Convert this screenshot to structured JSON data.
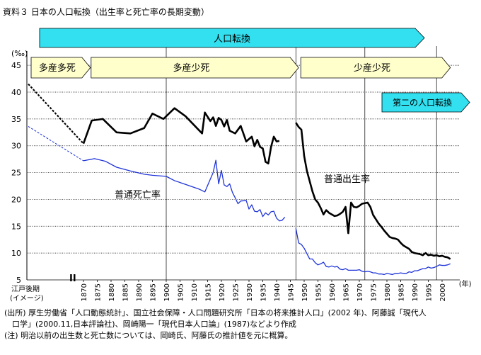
{
  "title": "資料３ 日本の人口転換（出生率と死亡率の長期変動）",
  "notes": [
    "(出所) 厚生労働省「人口動態統計」、国立社会保障・人口問題研究所「日本の将来推計人口」(2002 年)、阿藤誠「現代人",
    "　口学」(2000.11,日本評論社)、岡崎陽一「現代日本人口論」(1987)などより作成",
    "(注) 明治以前の出生数と死亡数については、岡崎氏、阿藤氏の推計値を元に概算。"
  ],
  "colors": {
    "birth": "#000000",
    "death": "#1f34d8",
    "arrow_fill": "#ffffcc",
    "arrow_fill_cyan": "#33e0f0",
    "grid": "#222222"
  },
  "chart_data": {
    "type": "line",
    "unit_label": "(‰)",
    "x_unit_label": "(年)",
    "edo_label_1": "江戸後期",
    "edo_label_2": "(イメージ)",
    "break_mark": "II",
    "yticks": [
      5,
      10,
      15,
      20,
      25,
      30,
      35,
      40,
      45
    ],
    "ylim": [
      5,
      47
    ],
    "xticks": [
      "1870",
      "1875",
      "1880",
      "1885",
      "1890",
      "1895",
      "1900",
      "1905",
      "1910",
      "1915",
      "1920",
      "1925",
      "1930",
      "1935",
      "1940",
      "1945",
      "1950",
      "1955",
      "1960",
      "1965",
      "1970",
      "1975",
      "1980",
      "1985",
      "1990",
      "1995",
      "2000"
    ],
    "vlines": [
      1900,
      1947,
      1972,
      1998
    ],
    "transition_arrow": "人口転換",
    "phases": [
      {
        "label": "多産多死",
        "from": "edo",
        "to": 1872
      },
      {
        "label": "多産少死",
        "from": 1872,
        "to": 1948
      },
      {
        "label": "少産少死",
        "from": 1948,
        "to": 2003
      }
    ],
    "second_transition": "第二の人口転換",
    "series": [
      {
        "name": "普通出生率",
        "edo_dashed": [
          [
            "edo",
            41.5
          ],
          [
            1870,
            30.4
          ]
        ],
        "segments": [
          [
            [
              1870,
              30.4
            ],
            [
              1873,
              34.7
            ],
            [
              1877,
              35.0
            ],
            [
              1882,
              32.5
            ],
            [
              1887,
              32.3
            ],
            [
              1892,
              33.3
            ],
            [
              1895,
              36.0
            ],
            [
              1899,
              35.0
            ],
            [
              1903,
              37.0
            ],
            [
              1907,
              35.5
            ],
            [
              1913,
              32.3
            ],
            [
              1914,
              36.2
            ],
            [
              1916,
              34.6
            ],
            [
              1917,
              35.3
            ],
            [
              1918,
              33.7
            ],
            [
              1919,
              35.2
            ],
            [
              1920,
              34.8
            ],
            [
              1921,
              33.6
            ],
            [
              1922,
              34.8
            ],
            [
              1923,
              32.8
            ],
            [
              1925,
              32.3
            ],
            [
              1927,
              33.7
            ],
            [
              1929,
              30.8
            ],
            [
              1931,
              31.7
            ],
            [
              1932,
              29.9
            ],
            [
              1933,
              31.1
            ],
            [
              1934,
              29.8
            ],
            [
              1935,
              29.5
            ],
            [
              1936,
              27.0
            ],
            [
              1937,
              26.7
            ],
            [
              1938,
              29.8
            ],
            [
              1939,
              31.7
            ],
            [
              1940,
              30.8
            ],
            [
              1941,
              30.9
            ]
          ],
          [
            [
              1947,
              34.3
            ],
            [
              1948,
              33.5
            ],
            [
              1949,
              33.0
            ],
            [
              1950,
              28.1
            ],
            [
              1951,
              25.3
            ],
            [
              1952,
              23.4
            ],
            [
              1953,
              21.5
            ],
            [
              1954,
              20.0
            ],
            [
              1955,
              19.4
            ],
            [
              1956,
              18.4
            ],
            [
              1957,
              17.2
            ],
            [
              1958,
              18.0
            ],
            [
              1959,
              17.5
            ],
            [
              1960,
              17.2
            ],
            [
              1961,
              16.9
            ],
            [
              1962,
              17.0
            ],
            [
              1963,
              17.3
            ],
            [
              1964,
              17.7
            ],
            [
              1965,
              18.6
            ],
            [
              1966,
              13.7
            ],
            [
              1967,
              19.4
            ],
            [
              1968,
              18.6
            ],
            [
              1969,
              18.5
            ],
            [
              1970,
              18.8
            ],
            [
              1971,
              19.2
            ],
            [
              1972,
              19.3
            ],
            [
              1973,
              19.4
            ],
            [
              1974,
              18.6
            ],
            [
              1975,
              17.1
            ],
            [
              1976,
              16.3
            ],
            [
              1977,
              15.5
            ],
            [
              1978,
              14.9
            ],
            [
              1979,
              14.2
            ],
            [
              1980,
              13.6
            ],
            [
              1981,
              13.0
            ],
            [
              1982,
              12.8
            ],
            [
              1983,
              12.7
            ],
            [
              1984,
              12.5
            ],
            [
              1985,
              11.9
            ],
            [
              1986,
              11.4
            ],
            [
              1987,
              11.1
            ],
            [
              1988,
              10.8
            ],
            [
              1989,
              10.2
            ],
            [
              1990,
              10.0
            ],
            [
              1991,
              9.9
            ],
            [
              1992,
              9.8
            ],
            [
              1993,
              9.6
            ],
            [
              1994,
              10.0
            ],
            [
              1995,
              9.6
            ],
            [
              1996,
              9.7
            ],
            [
              1997,
              9.5
            ],
            [
              1998,
              9.6
            ],
            [
              1999,
              9.4
            ],
            [
              2000,
              9.5
            ],
            [
              2001,
              9.3
            ],
            [
              2002,
              9.2
            ],
            [
              2003,
              8.9
            ]
          ]
        ]
      },
      {
        "name": "普通死亡率",
        "edo_dashed": [
          [
            "edo",
            33.6
          ],
          [
            1870,
            27.2
          ]
        ],
        "segments": [
          [
            [
              1870,
              27.2
            ],
            [
              1874,
              27.6
            ],
            [
              1878,
              27.1
            ],
            [
              1882,
              26.0
            ],
            [
              1887,
              25.3
            ],
            [
              1892,
              24.7
            ],
            [
              1895,
              24.5
            ],
            [
              1900,
              24.3
            ],
            [
              1903,
              23.5
            ],
            [
              1907,
              22.8
            ],
            [
              1912,
              21.9
            ],
            [
              1914,
              21.4
            ],
            [
              1917,
              25.0
            ],
            [
              1918,
              27.3
            ],
            [
              1919,
              22.9
            ],
            [
              1920,
              25.4
            ],
            [
              1921,
              22.7
            ],
            [
              1922,
              22.4
            ],
            [
              1923,
              22.9
            ],
            [
              1924,
              21.3
            ],
            [
              1925,
              20.3
            ],
            [
              1926,
              19.2
            ],
            [
              1927,
              19.7
            ],
            [
              1929,
              19.8
            ],
            [
              1930,
              18.2
            ],
            [
              1931,
              19.0
            ],
            [
              1932,
              17.8
            ],
            [
              1933,
              17.7
            ],
            [
              1934,
              18.1
            ],
            [
              1935,
              16.8
            ],
            [
              1936,
              17.5
            ],
            [
              1937,
              17.1
            ],
            [
              1938,
              17.7
            ],
            [
              1939,
              17.8
            ],
            [
              1940,
              16.5
            ],
            [
              1941,
              16.0
            ],
            [
              1942,
              16.1
            ],
            [
              1943,
              16.7
            ]
          ],
          [
            [
              1947,
              14.6
            ],
            [
              1948,
              11.9
            ],
            [
              1949,
              11.6
            ],
            [
              1950,
              10.9
            ],
            [
              1951,
              9.9
            ],
            [
              1952,
              8.9
            ],
            [
              1953,
              8.9
            ],
            [
              1954,
              8.2
            ],
            [
              1955,
              7.8
            ],
            [
              1956,
              8.0
            ],
            [
              1957,
              8.3
            ],
            [
              1958,
              7.5
            ],
            [
              1959,
              7.4
            ],
            [
              1960,
              7.6
            ],
            [
              1961,
              7.4
            ],
            [
              1962,
              7.5
            ],
            [
              1963,
              7.0
            ],
            [
              1964,
              6.9
            ],
            [
              1965,
              7.1
            ],
            [
              1966,
              6.8
            ],
            [
              1967,
              6.8
            ],
            [
              1968,
              6.8
            ],
            [
              1969,
              6.8
            ],
            [
              1970,
              6.9
            ],
            [
              1971,
              6.6
            ],
            [
              1972,
              6.5
            ],
            [
              1973,
              6.6
            ],
            [
              1974,
              6.5
            ],
            [
              1975,
              6.3
            ],
            [
              1976,
              6.3
            ],
            [
              1977,
              6.1
            ],
            [
              1978,
              6.1
            ],
            [
              1979,
              6.0
            ],
            [
              1980,
              6.2
            ],
            [
              1981,
              6.1
            ],
            [
              1982,
              6.0
            ],
            [
              1983,
              6.2
            ],
            [
              1984,
              6.2
            ],
            [
              1985,
              6.3
            ],
            [
              1986,
              6.2
            ],
            [
              1987,
              6.2
            ],
            [
              1988,
              6.5
            ],
            [
              1989,
              6.4
            ],
            [
              1990,
              6.7
            ],
            [
              1991,
              6.7
            ],
            [
              1992,
              6.9
            ],
            [
              1993,
              7.1
            ],
            [
              1994,
              7.1
            ],
            [
              1995,
              7.4
            ],
            [
              1996,
              7.2
            ],
            [
              1997,
              7.3
            ],
            [
              1998,
              7.5
            ],
            [
              1999,
              7.8
            ],
            [
              2000,
              7.7
            ],
            [
              2001,
              7.7
            ],
            [
              2002,
              7.8
            ],
            [
              2003,
              8.0
            ]
          ]
        ]
      }
    ]
  }
}
